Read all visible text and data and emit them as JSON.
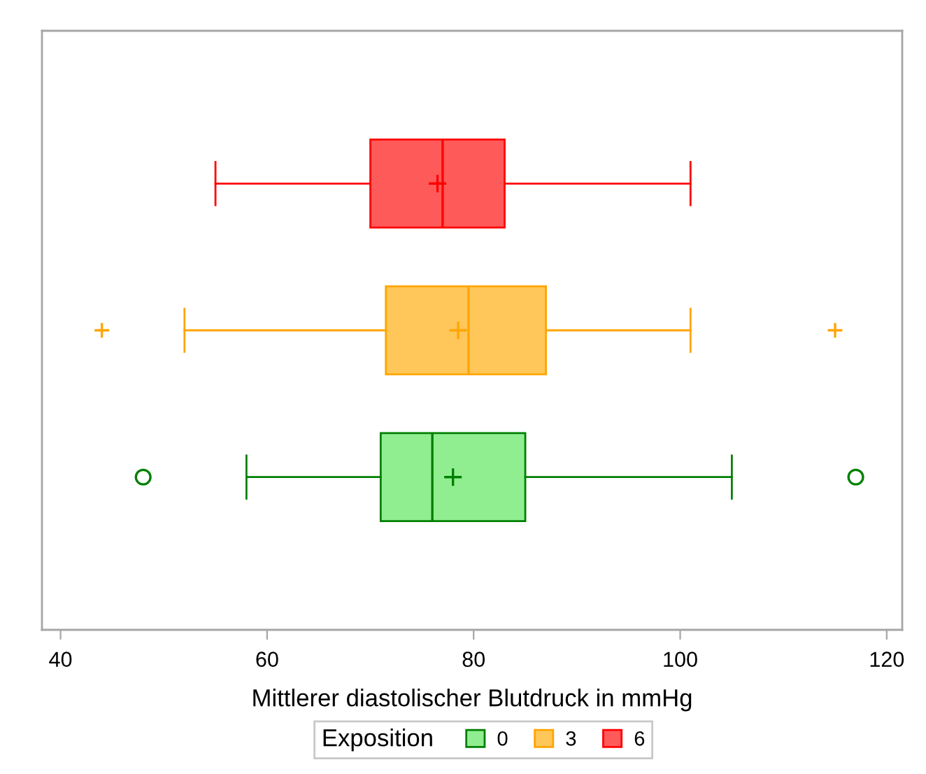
{
  "chart_data": {
    "type": "box",
    "orientation": "horizontal",
    "xlabel": "Mittlerer diastolischer Blutdruck in mmHg",
    "legend_title": "Exposition",
    "legend": "bottom",
    "tick_labels": "x",
    "categories": [
      null
    ],
    "xlim": [
      38.2,
      121.5
    ],
    "xticks": [
      40,
      60,
      80,
      100,
      120
    ],
    "series": [
      {
        "name": "0",
        "color": "#008000",
        "colors": [
          "#90ee90"
        ],
        "marker": "circle",
        "boxes": [
          {
            "low": 58,
            "q1": 71,
            "median": 76,
            "q3": 85,
            "high": 105,
            "mean": 78,
            "outliers": [
              48,
              117
            ]
          }
        ]
      },
      {
        "name": "3",
        "color": "#ffa500",
        "colors": [
          "#ffc65a"
        ],
        "marker": "cross",
        "boxes": [
          {
            "low": 52,
            "q1": 71.5,
            "median": 79.5,
            "q3": 87,
            "high": 101,
            "mean": 78.5,
            "outliers": [
              44,
              115
            ]
          }
        ]
      },
      {
        "name": "6",
        "color": "#ff0000",
        "colors": [
          "#ff5a5a"
        ],
        "boxes": [
          {
            "low": 55,
            "q1": 70,
            "median": 77,
            "q3": 83,
            "high": 101,
            "mean": 76.5
          }
        ]
      }
    ]
  }
}
